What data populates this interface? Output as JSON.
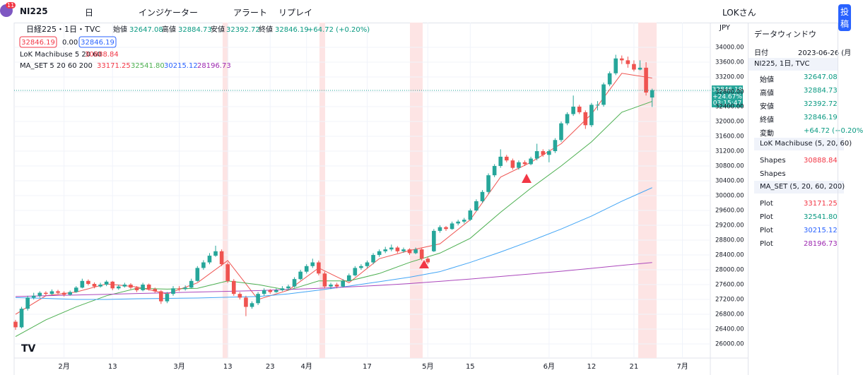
{
  "toolbar": {
    "symbol": "NI225",
    "badge": "11",
    "interval": "日",
    "indicators": "インジケーター",
    "alert": "アラート",
    "replay": "リプレイ",
    "user": "LOKさん",
    "publish": "投稿"
  },
  "legend": {
    "title": "日経225・1日・TVC",
    "o_label": "始値",
    "o": "32647.08",
    "h_label": "高値",
    "h": "32884.73",
    "l_label": "安値",
    "l": "32392.72",
    "c_label": "終値",
    "c": "32846.19",
    "change": "+64.72 (+0.20%)",
    "box1": "32846.19",
    "box_mid": "0.00",
    "box2": "32846.19",
    "ind1": "LoK Machibuse 5 20 60",
    "ind1_value": "30888.84",
    "ind2": "MA_SET 5 20 60 200",
    "ind2_values": [
      "33171.25",
      "32541.80",
      "30215.12",
      "28196.73"
    ]
  },
  "price_label": {
    "price": "32846.19",
    "pct": "+24.67%",
    "timer": "03:15:47"
  },
  "currency": "JPY",
  "data_window": {
    "title": "データウィンドウ",
    "date_label": "日付",
    "date": "2023-06-26 (月",
    "symbol": "NI225, 1日, TVC",
    "ohlc": [
      [
        "始値",
        "32647.08"
      ],
      [
        "高値",
        "32884.73"
      ],
      [
        "安値",
        "32392.72"
      ],
      [
        "終値",
        "32846.19"
      ],
      [
        "変動",
        "+64.72 (+0.20%"
      ]
    ],
    "ind1": "LoK Machibuse (5, 20, 60)",
    "ind1_rows": [
      [
        "Shapes",
        "30888.84"
      ],
      [
        "Shapes",
        ""
      ]
    ],
    "ind2": "MA_SET (5, 20, 60, 200)",
    "ind2_rows": [
      [
        "Plot",
        "33171.25"
      ],
      [
        "Plot",
        "32541.80"
      ],
      [
        "Plot",
        "30215.12"
      ],
      [
        "Plot",
        "28196.73"
      ]
    ]
  },
  "chart_data": {
    "type": "candlestick",
    "up_color": "#26a69a",
    "down_color": "#ef5350",
    "xlim": [
      -0.23,
      114.6
    ],
    "ylim": [
      25620,
      34667
    ],
    "xticks": [
      {
        "value": 8,
        "label": "2月"
      },
      {
        "value": 16,
        "label": "13"
      },
      {
        "value": 27,
        "label": "3月"
      },
      {
        "value": 35,
        "label": "13"
      },
      {
        "value": 42,
        "label": "23"
      },
      {
        "value": 48,
        "label": "4月"
      },
      {
        "value": 58,
        "label": "17"
      },
      {
        "value": 68,
        "label": "5月"
      },
      {
        "value": 75,
        "label": "15"
      },
      {
        "value": 88,
        "label": "6月"
      },
      {
        "value": 95,
        "label": "12"
      },
      {
        "value": 102,
        "label": "21"
      },
      {
        "value": 110,
        "label": "7月"
      }
    ],
    "yticks": [
      {
        "value": 26000,
        "label": "26000.00"
      },
      {
        "value": 26400,
        "label": "26400.00"
      },
      {
        "value": 26800,
        "label": "26800.00"
      },
      {
        "value": 27200,
        "label": "27200.00"
      },
      {
        "value": 27600,
        "label": "27600.00"
      },
      {
        "value": 28000,
        "label": "28000.00"
      },
      {
        "value": 28400,
        "label": "28400.00"
      },
      {
        "value": 28800,
        "label": "28800.00"
      },
      {
        "value": 29200,
        "label": "29200.00"
      },
      {
        "value": 29600,
        "label": "29600.00"
      },
      {
        "value": 30000,
        "label": "30000.00"
      },
      {
        "value": 30400,
        "label": "30400.00"
      },
      {
        "value": 30800,
        "label": "30800.00"
      },
      {
        "value": 31200,
        "label": "31200.00"
      },
      {
        "value": 31600,
        "label": "31600.00"
      },
      {
        "value": 32000,
        "label": "32000.00"
      },
      {
        "value": 32400,
        "label": "32400.00"
      },
      {
        "value": 32800,
        "label": "32800.00"
      },
      {
        "value": 33200,
        "label": "33200.00"
      },
      {
        "value": 33600,
        "label": "33600.00"
      },
      {
        "value": 34000,
        "label": "34000.00"
      }
    ],
    "candles": [
      [
        26600,
        26650,
        26380,
        26450
      ],
      [
        26450,
        27000,
        26420,
        26950
      ],
      [
        26950,
        27300,
        26900,
        27250
      ],
      [
        27250,
        27380,
        27200,
        27300
      ],
      [
        27300,
        27420,
        27250,
        27380
      ],
      [
        27380,
        27420,
        27300,
        27350
      ],
      [
        27350,
        27470,
        27320,
        27420
      ],
      [
        27420,
        27460,
        27330,
        27380
      ],
      [
        27380,
        27420,
        27280,
        27330
      ],
      [
        27330,
        27440,
        27300,
        27400
      ],
      [
        27400,
        27560,
        27380,
        27520
      ],
      [
        27520,
        27760,
        27500,
        27700
      ],
      [
        27700,
        27740,
        27580,
        27620
      ],
      [
        27620,
        27660,
        27500,
        27550
      ],
      [
        27550,
        27650,
        27520,
        27600
      ],
      [
        27600,
        27720,
        27560,
        27680
      ],
      [
        27680,
        27700,
        27450,
        27500
      ],
      [
        27500,
        27600,
        27460,
        27550
      ],
      [
        27550,
        27650,
        27520,
        27600
      ],
      [
        27600,
        27640,
        27480,
        27520
      ],
      [
        27520,
        27560,
        27400,
        27450
      ],
      [
        27450,
        27650,
        27420,
        27600
      ],
      [
        27600,
        27630,
        27440,
        27480
      ],
      [
        27480,
        27520,
        27380,
        27420
      ],
      [
        27420,
        27450,
        27080,
        27150
      ],
      [
        27150,
        27400,
        27100,
        27350
      ],
      [
        27350,
        27560,
        27300,
        27500
      ],
      [
        27500,
        27560,
        27420,
        27480
      ],
      [
        27480,
        27580,
        27440,
        27520
      ],
      [
        27520,
        27760,
        27500,
        27700
      ],
      [
        27700,
        28100,
        27680,
        28050
      ],
      [
        28050,
        28260,
        28000,
        28200
      ],
      [
        28200,
        28450,
        28150,
        28380
      ],
      [
        28380,
        28650,
        28350,
        28500
      ],
      [
        28500,
        28550,
        28100,
        28150
      ],
      [
        28150,
        28200,
        27650,
        27700
      ],
      [
        27700,
        27750,
        27300,
        27350
      ],
      [
        27350,
        27400,
        27200,
        27250
      ],
      [
        27250,
        27300,
        26750,
        27000
      ],
      [
        27000,
        27150,
        26950,
        27100
      ],
      [
        27100,
        27400,
        27050,
        27350
      ],
      [
        27350,
        27500,
        27300,
        27450
      ],
      [
        27450,
        27480,
        27350,
        27400
      ],
      [
        27400,
        27500,
        27380,
        27450
      ],
      [
        27450,
        27560,
        27420,
        27500
      ],
      [
        27500,
        27600,
        27460,
        27550
      ],
      [
        27550,
        27800,
        27520,
        27750
      ],
      [
        27750,
        28000,
        27720,
        27950
      ],
      [
        27950,
        28150,
        27900,
        28100
      ],
      [
        28100,
        28300,
        28050,
        28200
      ],
      [
        28200,
        28250,
        27850,
        27900
      ],
      [
        27900,
        27950,
        27500,
        27550
      ],
      [
        27550,
        27650,
        27480,
        27600
      ],
      [
        27600,
        27650,
        27500,
        27550
      ],
      [
        27550,
        27750,
        27520,
        27700
      ],
      [
        27700,
        27900,
        27680,
        27850
      ],
      [
        27850,
        28100,
        27820,
        28050
      ],
      [
        28050,
        28150,
        28000,
        28100
      ],
      [
        28100,
        28250,
        28050,
        28200
      ],
      [
        28200,
        28450,
        28150,
        28400
      ],
      [
        28400,
        28550,
        28350,
        28500
      ],
      [
        28500,
        28620,
        28450,
        28550
      ],
      [
        28550,
        28680,
        28500,
        28600
      ],
      [
        28600,
        28640,
        28450,
        28500
      ],
      [
        28500,
        28600,
        28460,
        28550
      ],
      [
        28550,
        28580,
        28400,
        28450
      ],
      [
        28450,
        28600,
        28420,
        28550
      ],
      [
        28550,
        28580,
        28250,
        28300
      ],
      [
        28300,
        28350,
        28150,
        28200
      ],
      [
        28500,
        29100,
        28480,
        29050
      ],
      [
        29050,
        29200,
        29000,
        29150
      ],
      [
        29150,
        29180,
        29050,
        29100
      ],
      [
        29100,
        29300,
        29080,
        29250
      ],
      [
        29250,
        29350,
        29200,
        29300
      ],
      [
        29300,
        29400,
        29250,
        29350
      ],
      [
        29350,
        29650,
        29320,
        29600
      ],
      [
        29600,
        29900,
        29580,
        29850
      ],
      [
        29850,
        30150,
        29800,
        30100
      ],
      [
        30100,
        30600,
        30050,
        30550
      ],
      [
        30550,
        30850,
        30500,
        30800
      ],
      [
        30800,
        31250,
        30750,
        31050
      ],
      [
        31050,
        31100,
        30900,
        30950
      ],
      [
        30950,
        31000,
        30700,
        30750
      ],
      [
        30750,
        30950,
        30700,
        30900
      ],
      [
        30900,
        30950,
        30800,
        30850
      ],
      [
        30850,
        31050,
        30820,
        31000
      ],
      [
        31000,
        31400,
        30950,
        31200
      ],
      [
        31200,
        31250,
        31050,
        31100
      ],
      [
        31100,
        31250,
        30900,
        31200
      ],
      [
        31200,
        31550,
        31150,
        31500
      ],
      [
        31500,
        32000,
        31450,
        31950
      ],
      [
        31950,
        32250,
        31900,
        32200
      ],
      [
        32200,
        32700,
        32150,
        32400
      ],
      [
        32400,
        32450,
        32200,
        32250
      ],
      [
        32250,
        32300,
        31800,
        31900
      ],
      [
        31900,
        32500,
        31850,
        32450
      ],
      [
        32450,
        32550,
        32300,
        32450
      ],
      [
        32450,
        33050,
        32400,
        33000
      ],
      [
        33000,
        33350,
        32950,
        33300
      ],
      [
        33300,
        33800,
        33250,
        33700
      ],
      [
        33700,
        33780,
        33550,
        33650
      ],
      [
        33650,
        33750,
        33450,
        33550
      ],
      [
        33550,
        33650,
        33350,
        33400
      ],
      [
        33400,
        33650,
        33380,
        33450
      ],
      [
        33450,
        33600,
        32700,
        32781
      ],
      [
        32647.08,
        32884.73,
        32392.72,
        32846.19
      ]
    ],
    "series": [
      {
        "name": "MA5",
        "color": "#ef5350",
        "x": [
          0,
          5,
          10,
          15,
          20,
          25,
          30,
          35,
          40,
          45,
          50,
          55,
          60,
          65,
          70,
          75,
          80,
          85,
          90,
          95,
          100,
          105
        ],
        "values": [
          26800,
          27300,
          27400,
          27620,
          27540,
          27350,
          27650,
          28250,
          27200,
          27450,
          28050,
          27650,
          28300,
          28520,
          28700,
          29350,
          30500,
          30900,
          31400,
          32200,
          33300,
          33171.25
        ]
      },
      {
        "name": "MA20",
        "color": "#4caf50",
        "x": [
          0,
          5,
          10,
          15,
          20,
          25,
          30,
          35,
          40,
          45,
          50,
          55,
          60,
          65,
          70,
          75,
          80,
          85,
          90,
          95,
          100,
          105
        ],
        "values": [
          26200,
          26650,
          27000,
          27300,
          27500,
          27480,
          27500,
          27700,
          27600,
          27450,
          27700,
          27700,
          27900,
          28200,
          28450,
          28850,
          29550,
          30200,
          30800,
          31450,
          32250,
          32541.8
        ]
      },
      {
        "name": "MA60",
        "color": "#42a5f5",
        "x": [
          0,
          5,
          10,
          15,
          20,
          25,
          30,
          35,
          40,
          45,
          50,
          55,
          60,
          65,
          70,
          75,
          80,
          85,
          90,
          95,
          100,
          105
        ],
        "values": [
          27250,
          27230,
          27200,
          27200,
          27220,
          27230,
          27240,
          27260,
          27280,
          27350,
          27450,
          27560,
          27680,
          27800,
          27950,
          28200,
          28480,
          28780,
          29100,
          29450,
          29850,
          30215.12
        ]
      },
      {
        "name": "MA200",
        "color": "#ab47bc",
        "x": [
          0,
          5,
          10,
          15,
          20,
          25,
          30,
          35,
          40,
          45,
          50,
          55,
          60,
          65,
          70,
          75,
          80,
          85,
          90,
          95,
          100,
          105
        ],
        "values": [
          27280,
          27300,
          27320,
          27340,
          27360,
          27380,
          27400,
          27420,
          27440,
          27470,
          27500,
          27540,
          27580,
          27630,
          27690,
          27750,
          27820,
          27890,
          27960,
          28040,
          28120,
          28196.73
        ]
      }
    ]
  }
}
